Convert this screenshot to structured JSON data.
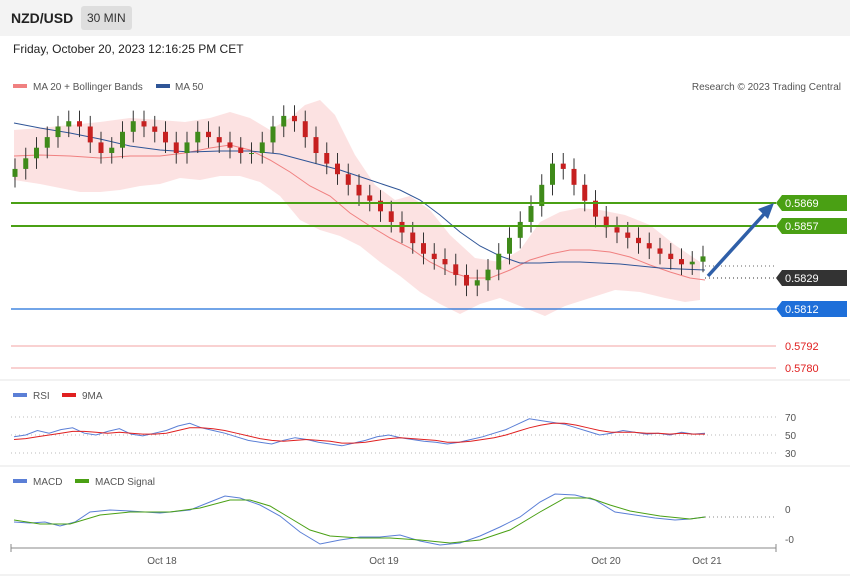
{
  "header": {
    "pair": "NZD/USD",
    "timeframe": "30 MIN",
    "datetime": "Friday, October 20, 2023 12:16:25 PM CET"
  },
  "legend": {
    "main": [
      {
        "label": "MA 20 + Bollinger Bands",
        "color": "#f08080"
      },
      {
        "label": "MA 50",
        "color": "#2f5597"
      }
    ],
    "rsi": [
      {
        "label": "RSI",
        "color": "#5b7fd6"
      },
      {
        "label": "9MA",
        "color": "#e02020"
      }
    ],
    "macd": [
      {
        "label": "MACD",
        "color": "#5b7fd6"
      },
      {
        "label": "MACD Signal",
        "color": "#4aa014"
      }
    ]
  },
  "copyright": "Research © 2023 Trading Central",
  "chart_data": {
    "type": "candlestick",
    "instrument": "NZD/USD",
    "interval": "30 MIN",
    "price_ylim": [
      0.5805,
      0.5888
    ],
    "price_levels": [
      {
        "label": "0.5869",
        "value": 0.5869,
        "role": "resistance",
        "color": "#4aa014"
      },
      {
        "label": "0.5857",
        "value": 0.5857,
        "role": "resistance",
        "color": "#4aa014"
      },
      {
        "label": "0.5829",
        "value": 0.5829,
        "role": "last",
        "color": "#333333"
      },
      {
        "label": "0.5812",
        "value": 0.5812,
        "role": "pivot",
        "color": "#1e6fd9"
      },
      {
        "label": "0.5792",
        "value": 0.5792,
        "role": "support",
        "color": "#e02020"
      },
      {
        "label": "0.5780",
        "value": 0.578,
        "role": "support",
        "color": "#e02020"
      }
    ],
    "projection": {
      "from": 0.5829,
      "to": 0.5869
    },
    "x_ticks": [
      "Oct 18",
      "Oct 19",
      "Oct 20",
      "Oct 21"
    ],
    "candles_close": [
      0.5862,
      0.5866,
      0.587,
      0.5874,
      0.5878,
      0.588,
      0.5878,
      0.5872,
      0.5868,
      0.587,
      0.5876,
      0.588,
      0.5878,
      0.5876,
      0.5872,
      0.5868,
      0.5872,
      0.5876,
      0.5874,
      0.5872,
      0.587,
      0.5868,
      0.5868,
      0.5872,
      0.5878,
      0.5882,
      0.588,
      0.5874,
      0.5868,
      0.5864,
      0.586,
      0.5856,
      0.5852,
      0.585,
      0.5846,
      0.5842,
      0.5838,
      0.5834,
      0.583,
      0.5828,
      0.5826,
      0.5822,
      0.5818,
      0.582,
      0.5824,
      0.583,
      0.5836,
      0.5842,
      0.5848,
      0.5856,
      0.5864,
      0.5862,
      0.5856,
      0.585,
      0.5844,
      0.584,
      0.5838,
      0.5836,
      0.5834,
      0.5832,
      0.583,
      0.5828,
      0.5826,
      0.5827,
      0.5829
    ],
    "rsi": {
      "ylim": [
        20,
        80
      ],
      "ticks": [
        "70",
        "50",
        "30"
      ],
      "values": [
        48,
        50,
        55,
        52,
        56,
        58,
        52,
        50,
        54,
        57,
        51,
        49,
        52,
        55,
        60,
        63,
        58,
        55,
        52,
        48,
        44,
        42,
        40,
        44,
        47,
        45,
        42,
        40,
        38,
        41,
        44,
        48,
        50,
        47,
        45,
        43,
        42,
        40,
        42,
        45,
        48,
        52,
        56,
        62,
        68,
        66,
        64,
        62,
        58,
        54,
        50,
        52,
        55,
        53,
        51,
        52,
        50,
        53,
        51,
        52
      ]
    },
    "rsi_ma9": [
      45,
      46,
      48,
      50,
      52,
      54,
      54,
      53,
      52,
      53,
      52,
      51,
      51,
      52,
      55,
      58,
      58,
      57,
      55,
      52,
      49,
      46,
      44,
      43,
      44,
      45,
      44,
      43,
      41,
      41,
      42,
      44,
      46,
      47,
      46,
      45,
      44,
      42,
      42,
      43,
      45,
      47,
      50,
      54,
      58,
      61,
      63,
      63,
      61,
      58,
      55,
      53,
      53,
      53,
      52,
      52,
      51,
      52,
      51,
      51
    ]
  },
  "macd": {
    "ticks": [
      "0",
      "-0"
    ]
  }
}
